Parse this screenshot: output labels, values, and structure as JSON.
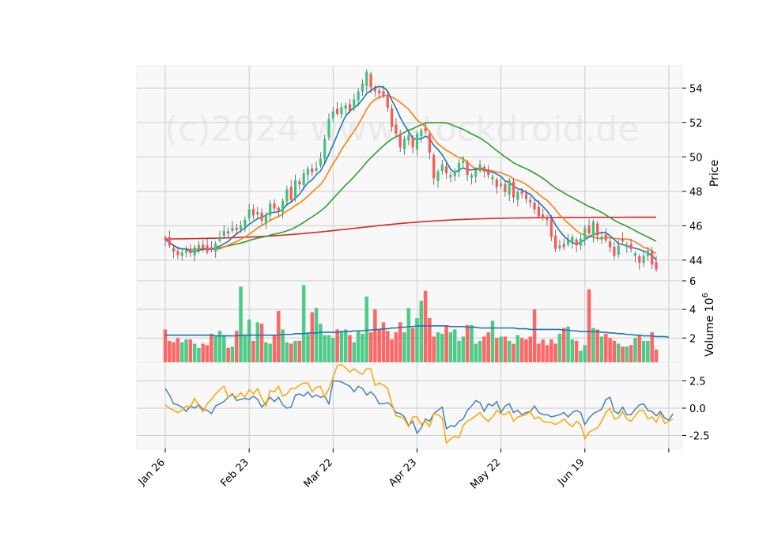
{
  "watermark": "(c)2024 www.stockdroid.de",
  "colors": {
    "up": "#3cc47c",
    "down": "#ff5555",
    "ma_short": "#1f77b4",
    "ma_medium": "#ff7f0e",
    "ma_long": "#2ca02c",
    "ma_200": "#d62728",
    "vol_ma": "#1f77b4",
    "osc_blue": "#4682b4",
    "osc_orange": "#ffa500",
    "grid": "#cccccc",
    "panel_bg": "#f8f8f8"
  },
  "chart_data": [
    {
      "type": "candlestick",
      "panel": "price",
      "ylabel": "Price",
      "yticks": [
        "44",
        "46",
        "48",
        "50",
        "52",
        "54"
      ],
      "ylim": [
        42.8,
        55.3
      ],
      "grid": true,
      "start_date": "2024-01-26",
      "x_tick_labels": [
        "Jan 26",
        "Feb 23",
        "Mar 22",
        "Apr 23",
        "May 22",
        "Jun 19"
      ],
      "x_tick_index": [
        0,
        20,
        40,
        60,
        80,
        100
      ],
      "close": [
        45.2,
        44.85,
        44.5,
        44.3,
        44.45,
        44.6,
        44.4,
        44.75,
        44.9,
        44.7,
        44.45,
        44.6,
        44.95,
        45.3,
        45.7,
        45.55,
        45.9,
        45.75,
        46.0,
        46.35,
        46.95,
        46.6,
        46.8,
        46.3,
        46.65,
        47.3,
        47.0,
        46.9,
        47.45,
        48.1,
        47.5,
        48.65,
        48.4,
        49.05,
        49.3,
        49.1,
        49.35,
        49.9,
        51.05,
        52.2,
        52.65,
        52.5,
        52.9,
        53.0,
        52.7,
        53.35,
        53.8,
        54.25,
        54.95,
        54.05,
        53.8,
        53.7,
        53.55,
        52.85,
        51.75,
        51.35,
        50.55,
        51.05,
        51.25,
        50.55,
        51.35,
        51.55,
        51.5,
        50.25,
        48.75,
        49.15,
        49.55,
        49.05,
        48.95,
        49.15,
        49.65,
        49.8,
        48.95,
        48.95,
        49.25,
        49.55,
        49.15,
        48.95,
        48.85,
        48.25,
        48.45,
        47.95,
        48.65,
        47.65,
        47.95,
        47.85,
        47.55,
        47.35,
        46.95,
        46.55,
        46.45,
        46.35,
        45.35,
        44.65,
        44.85,
        44.75,
        45.15,
        45.35,
        44.85,
        45.25,
        45.85,
        45.55,
        46.25,
        45.45,
        45.35,
        45.15,
        44.75,
        44.25,
        44.85,
        45.1,
        44.9,
        44.65,
        44.4,
        43.85,
        44.25,
        44.55,
        43.75,
        43.45
      ],
      "panel_label_unit": null
    },
    {
      "type": "bar",
      "panel": "volume",
      "ylabel": "Volume",
      "ylabel_exponent": "10",
      "ylabel_power": "6",
      "yticks": [
        "2",
        "4",
        "6"
      ],
      "ylim": [
        0.3,
        6.0
      ],
      "grid": true,
      "values": [
        2.6,
        1.8,
        1.7,
        2.0,
        1.7,
        1.9,
        1.9,
        1.6,
        1.3,
        1.6,
        1.5,
        2.3,
        2.1,
        2.5,
        2.2,
        1.3,
        1.4,
        2.5,
        5.6,
        2.2,
        3.3,
        1.8,
        3.1,
        3.0,
        1.7,
        1.6,
        2.2,
        3.9,
        2.6,
        1.7,
        1.6,
        1.8,
        1.8,
        5.7,
        2.3,
        3.8,
        4.1,
        3.0,
        2.2,
        2.2,
        2.0,
        2.6,
        2.5,
        2.6,
        2.2,
        1.7,
        2.5,
        2.3,
        4.9,
        2.4,
        4.0,
        2.6,
        3.1,
        2.5,
        1.9,
        2.4,
        3.1,
        2.4,
        4.1,
        2.7,
        3.4,
        4.6,
        5.3,
        3.4,
        2.1,
        2.4,
        2.3,
        2.9,
        2.4,
        2.6,
        1.8,
        2.1,
        2.9,
        2.9,
        1.6,
        1.8,
        2.1,
        2.4,
        3.2,
        2.0,
        2.1,
        2.1,
        1.8,
        1.6,
        2.2,
        2.0,
        1.9,
        2.1,
        4.0,
        1.6,
        1.9,
        1.5,
        1.9,
        1.6,
        2.3,
        2.7,
        2.8,
        1.9,
        1.8,
        1.1,
        1.5,
        5.4,
        2.7,
        2.6,
        2.1,
        2.3,
        2.0,
        1.8,
        1.6,
        1.4,
        1.4,
        1.5,
        2.0,
        2.2,
        1.8,
        1.8,
        2.4,
        1.2
      ],
      "ma": [
        2.2,
        2.2,
        2.2,
        2.2,
        2.2,
        2.2,
        2.2,
        2.2,
        2.2,
        2.2,
        2.2,
        2.2,
        2.15,
        2.15,
        2.15,
        2.15,
        2.15,
        2.15,
        2.2,
        2.2,
        2.2,
        2.2,
        2.2,
        2.2,
        2.2,
        2.2,
        2.2,
        2.2,
        2.25,
        2.25,
        2.25,
        2.3,
        2.3,
        2.3,
        2.35,
        2.35,
        2.35,
        2.4,
        2.4,
        2.4,
        2.4,
        2.4,
        2.45,
        2.45,
        2.45,
        2.5,
        2.5,
        2.5,
        2.55,
        2.55,
        2.6,
        2.6,
        2.65,
        2.65,
        2.7,
        2.7,
        2.75,
        2.75,
        2.8,
        2.8,
        2.85,
        2.85,
        2.85,
        2.85,
        2.85,
        2.85,
        2.85,
        2.85,
        2.8,
        2.8,
        2.8,
        2.8,
        2.75,
        2.75,
        2.75,
        2.7,
        2.7,
        2.7,
        2.7,
        2.7,
        2.7,
        2.7,
        2.7,
        2.7,
        2.65,
        2.65,
        2.65,
        2.6,
        2.6,
        2.6,
        2.6,
        2.6,
        2.6,
        2.6,
        2.6,
        2.55,
        2.55,
        2.5,
        2.5,
        2.45,
        2.45,
        2.45,
        2.45,
        2.45,
        2.4,
        2.4,
        2.35,
        2.35,
        2.3,
        2.3,
        2.25,
        2.25,
        2.2,
        2.2,
        2.15,
        2.15,
        2.15,
        2.1,
        2.1,
        2.1,
        2.05
      ]
    },
    {
      "type": "line",
      "panel": "oscillator",
      "yticks": [
        "-2.5",
        "0.0",
        "2.5"
      ],
      "ylim": [
        -3.7,
        4.2
      ],
      "grid": true,
      "series": [
        {
          "color_key": "osc_blue",
          "values": [
            1.8,
            1.2,
            0.4,
            0.3,
            0.1,
            -0.3,
            0.2,
            0.0,
            0.3,
            -0.1,
            -0.2,
            -0.5,
            0.2,
            0.4,
            0.6,
            1.0,
            1.3,
            0.7,
            0.8,
            0.9,
            0.8,
            1.1,
            0.8,
            0.1,
            0.5,
            1.0,
            0.6,
            1.0,
            0.3,
            0.0,
            0.1,
            1.2,
            1.3,
            1.1,
            1.5,
            1.0,
            1.2,
            1.0,
            1.1,
            0.4,
            2.5,
            2.5,
            2.4,
            2.2,
            2.0,
            1.5,
            2.0,
            1.8,
            1.2,
            1.5,
            1.1,
            0.4,
            0.4,
            0.5,
            0.2,
            -0.4,
            -0.5,
            -0.8,
            -1.6,
            -1.2,
            -2.3,
            -1.8,
            -1.0,
            -1.2,
            -0.5,
            -0.2,
            0.1,
            -1.9,
            -1.6,
            -1.7,
            -1.2,
            -1.0,
            -0.2,
            0.2,
            0.7,
            0.5,
            -0.3,
            0.4,
            0.2,
            0.6,
            -0.4,
            0.2,
            0.4,
            -0.4,
            -0.2,
            -0.6,
            -0.4,
            -0.3,
            0.2,
            -0.4,
            -0.6,
            -0.6,
            -0.8,
            -0.7,
            -0.6,
            -0.4,
            -0.8,
            -0.4,
            -0.2,
            -0.4,
            -1.5,
            -0.9,
            -0.5,
            -0.3,
            -0.1,
            0.8,
            1.0,
            -0.3,
            -0.5,
            0.1,
            -0.6,
            -0.6,
            -0.1,
            0.3,
            0.4,
            -0.2,
            -0.3,
            -0.7,
            -0.3,
            -0.9,
            -1.1,
            -0.5
          ]
        },
        {
          "color_key": "osc_orange",
          "values": [
            0.3,
            0.0,
            -0.2,
            -0.4,
            -0.2,
            0.2,
            0.1,
            0.9,
            0.2,
            -0.3,
            0.4,
            0.8,
            1.3,
            1.7,
            2.0,
            1.0,
            1.2,
            1.0,
            1.4,
            1.0,
            1.7,
            1.3,
            1.8,
            0.9,
            0.2,
            1.6,
            1.5,
            2.0,
            1.1,
            1.3,
            1.8,
            1.8,
            2.1,
            2.3,
            2.3,
            1.5,
            1.9,
            2.0,
            1.0,
            1.8,
            2.8,
            3.9,
            4.0,
            3.7,
            3.3,
            3.6,
            3.3,
            3.1,
            3.6,
            3.6,
            2.1,
            2.3,
            2.1,
            1.8,
            0.4,
            -0.7,
            -0.8,
            -1.0,
            -1.7,
            -0.8,
            -0.8,
            -1.5,
            -1.2,
            -1.7,
            -0.5,
            -0.6,
            -0.9,
            -3.2,
            -2.8,
            -2.6,
            -2.7,
            -1.6,
            -1.2,
            -1.0,
            -0.7,
            -0.4,
            -0.9,
            -1.2,
            -0.8,
            -0.2,
            -0.5,
            -0.6,
            -0.3,
            -1.2,
            -0.8,
            -0.7,
            -0.6,
            -0.3,
            -1.0,
            -0.8,
            -1.2,
            -1.3,
            -1.3,
            -1.5,
            -1.3,
            -1.0,
            -1.4,
            -1.7,
            -1.2,
            -1.5,
            -2.8,
            -2.2,
            -2.0,
            -1.8,
            -1.2,
            -0.4,
            0.0,
            -1.0,
            -0.9,
            -0.3,
            -1.0,
            -1.2,
            -0.7,
            -0.2,
            -0.2,
            -1.0,
            -0.8,
            -1.3,
            -0.5,
            -1.4,
            -1.2,
            -1.0
          ]
        }
      ]
    }
  ]
}
